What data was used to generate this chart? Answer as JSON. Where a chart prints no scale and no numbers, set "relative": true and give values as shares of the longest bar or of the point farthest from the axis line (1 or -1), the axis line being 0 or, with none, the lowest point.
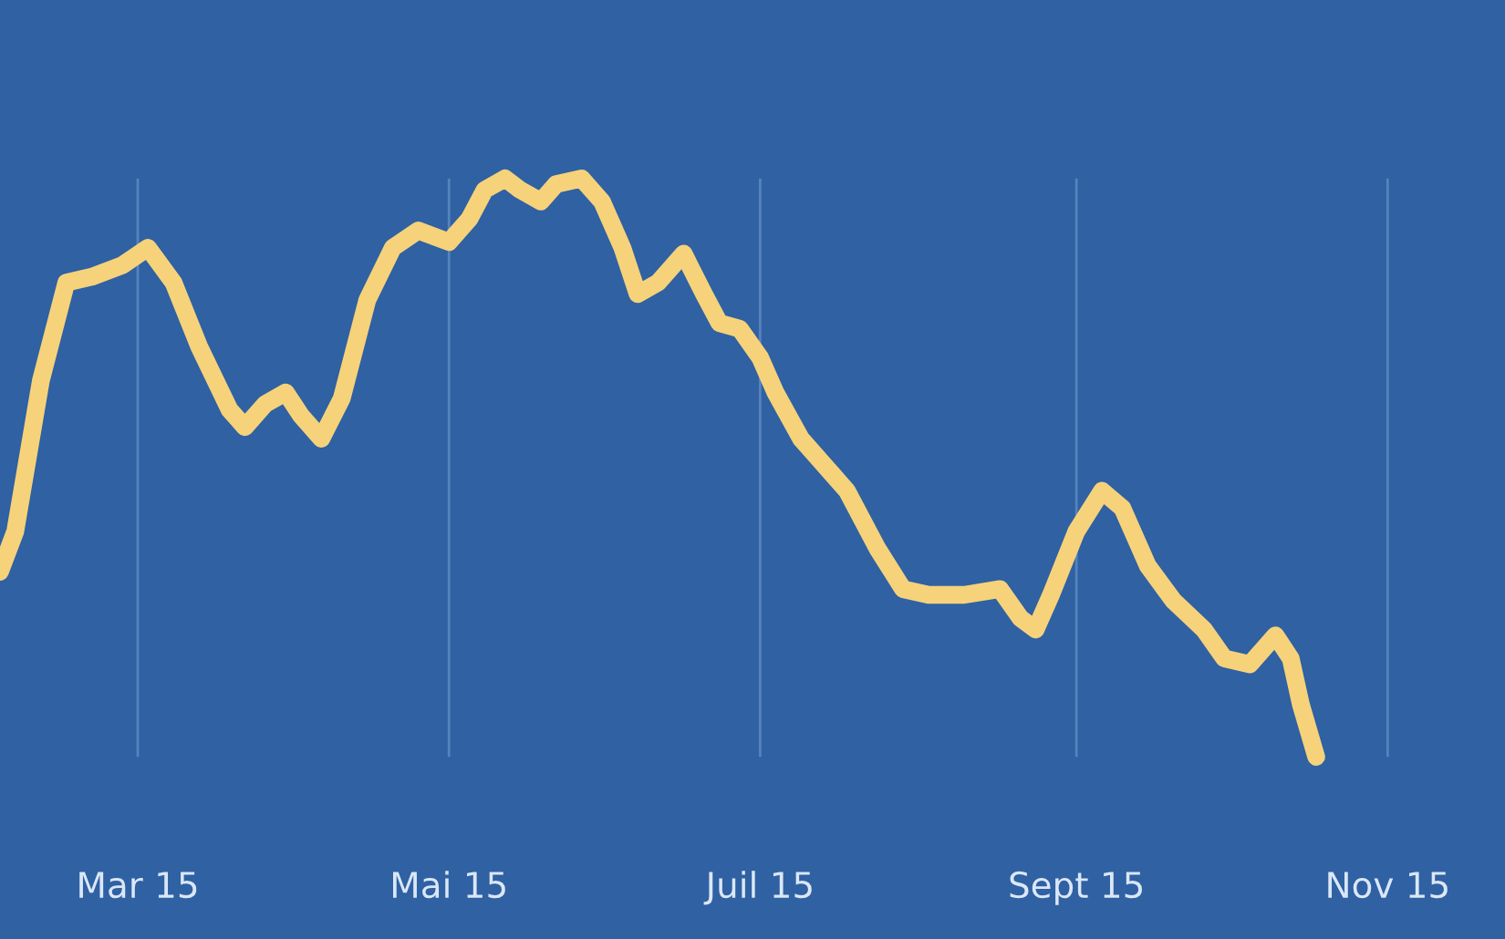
{
  "chart_data": {
    "type": "line",
    "relative": true,
    "x": [
      "2015-02-02",
      "2015-02-05",
      "2015-02-10",
      "2015-02-15",
      "2015-02-20",
      "2015-02-26",
      "2015-03-03",
      "2015-03-08",
      "2015-03-13",
      "2015-03-19",
      "2015-03-22",
      "2015-03-26",
      "2015-03-30",
      "2015-04-02",
      "2015-04-06",
      "2015-04-10",
      "2015-04-15",
      "2015-04-20",
      "2015-04-25",
      "2015-05-01",
      "2015-05-05",
      "2015-05-08",
      "2015-05-12",
      "2015-05-15",
      "2015-05-19",
      "2015-05-22",
      "2015-05-27",
      "2015-05-31",
      "2015-06-04",
      "2015-06-07",
      "2015-06-11",
      "2015-06-16",
      "2015-06-20",
      "2015-06-23",
      "2015-06-27",
      "2015-07-01",
      "2015-07-04",
      "2015-07-09",
      "2015-07-15",
      "2015-07-18",
      "2015-07-24",
      "2015-07-29",
      "2015-08-03",
      "2015-08-10",
      "2015-08-17",
      "2015-08-21",
      "2015-08-24",
      "2015-08-27",
      "2015-09-01",
      "2015-09-06",
      "2015-09-10",
      "2015-09-15",
      "2015-09-20",
      "2015-09-26",
      "2015-09-30",
      "2015-10-05",
      "2015-10-10",
      "2015-10-13",
      "2015-10-15",
      "2015-10-18"
    ],
    "series": [
      {
        "color": "#f6d27a",
        "values": [
          0.32,
          0.39,
          0.65,
          0.82,
          0.83,
          0.85,
          0.88,
          0.82,
          0.71,
          0.6,
          0.57,
          0.61,
          0.63,
          0.59,
          0.55,
          0.62,
          0.79,
          0.88,
          0.91,
          0.89,
          0.93,
          0.98,
          1,
          0.98,
          0.96,
          0.99,
          1,
          0.96,
          0.88,
          0.8,
          0.82,
          0.87,
          0.8,
          0.75,
          0.74,
          0.69,
          0.63,
          0.55,
          0.49,
          0.46,
          0.36,
          0.29,
          0.28,
          0.28,
          0.29,
          0.24,
          0.22,
          0.28,
          0.39,
          0.46,
          0.43,
          0.33,
          0.27,
          0.22,
          0.17,
          0.16,
          0.21,
          0.17,
          0.09,
          0
        ]
      }
    ],
    "xlim": [
      "2015-02-02",
      "2015-11-24"
    ],
    "xticks": [
      {
        "value": "2015-03",
        "label": "Mar 15"
      },
      {
        "value": "2015-05",
        "label": "Mai 15"
      },
      {
        "value": "2015-07",
        "label": "Juil 15"
      },
      {
        "value": "2015-09",
        "label": "Sept 15"
      },
      {
        "value": "2015-11",
        "label": "Nov 15"
      }
    ],
    "grid": "x",
    "line_style": "solid",
    "marker": "none"
  }
}
